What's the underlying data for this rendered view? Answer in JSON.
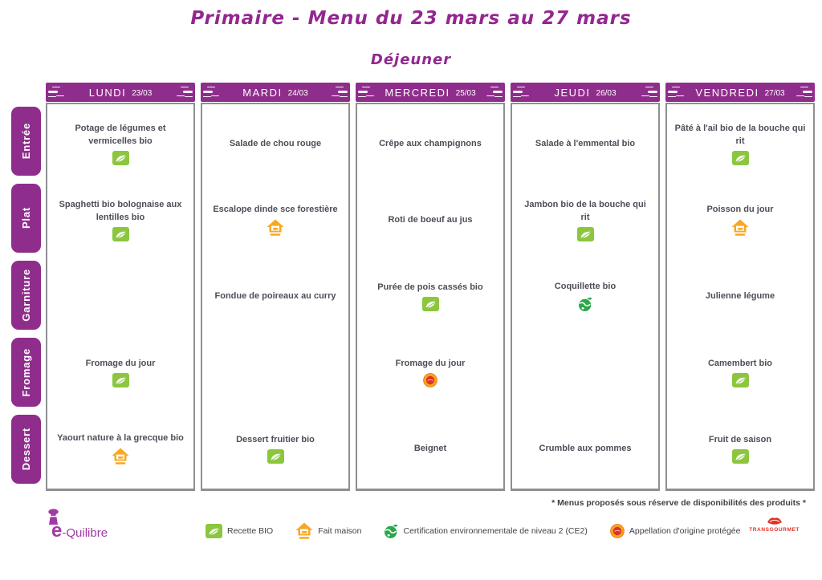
{
  "title": "Primaire - Menu du 23 mars au 27 mars",
  "subtitle": "Déjeuner",
  "colors": {
    "purple": "#8F2D8C",
    "bio_green": "#8CC63E",
    "ce2_green": "#2BA84A",
    "fait_maison_orange": "#F7A823",
    "aop_orange": "#F9A51A",
    "aop_red": "#E03127",
    "text_dark": "#4D4E58"
  },
  "row_labels": [
    "Entrée",
    "Plat",
    "Garniture",
    "Fromage",
    "Dessert"
  ],
  "days": [
    {
      "name": "LUNDI",
      "date": "23/03",
      "cells": [
        {
          "text": "Potage de légumes et vermicelles bio",
          "icons": [
            "bio"
          ]
        },
        {
          "text": "Spaghetti bio bolognaise aux lentilles bio",
          "icons": [
            "bio"
          ]
        },
        {
          "text": "",
          "icons": []
        },
        {
          "text": "Fromage du jour",
          "icons": [
            "bio"
          ]
        },
        {
          "text": "Yaourt nature à la grecque bio",
          "icons": [
            "fait-maison"
          ]
        }
      ]
    },
    {
      "name": "MARDI",
      "date": "24/03",
      "cells": [
        {
          "text": "Salade de chou rouge",
          "icons": []
        },
        {
          "text": "Escalope dinde sce forestière",
          "icons": [
            "fait-maison"
          ]
        },
        {
          "text": "Fondue de poireaux au curry",
          "icons": []
        },
        {
          "text": "",
          "icons": []
        },
        {
          "text": "Dessert fruitier bio",
          "icons": [
            "bio"
          ]
        }
      ]
    },
    {
      "name": "MERCREDI",
      "date": "25/03",
      "cells": [
        {
          "text": "Crêpe aux champignons",
          "icons": []
        },
        {
          "text": "Roti de boeuf au jus",
          "icons": []
        },
        {
          "text": "Purée de pois cassés bio",
          "icons": [
            "bio"
          ]
        },
        {
          "text": "Fromage du jour",
          "icons": [
            "aop"
          ]
        },
        {
          "text": "Beignet",
          "icons": []
        }
      ]
    },
    {
      "name": "JEUDI",
      "date": "26/03",
      "cells": [
        {
          "text": "Salade à l'emmental bio",
          "icons": []
        },
        {
          "text": "Jambon bio de la bouche qui rit",
          "icons": [
            "bio"
          ]
        },
        {
          "text": "Coquillette bio",
          "icons": [
            "ce2"
          ]
        },
        {
          "text": "",
          "icons": []
        },
        {
          "text": "Crumble aux pommes",
          "icons": []
        }
      ]
    },
    {
      "name": "VENDREDI",
      "date": "27/03",
      "cells": [
        {
          "text": "Pâté à l'ail bio de la bouche qui rit",
          "icons": [
            "bio"
          ]
        },
        {
          "text": "Poisson du jour",
          "icons": [
            "fait-maison"
          ]
        },
        {
          "text": "Julienne légume",
          "icons": []
        },
        {
          "text": "Camembert bio",
          "icons": [
            "bio"
          ]
        },
        {
          "text": "Fruit de saison",
          "icons": [
            "bio"
          ]
        }
      ]
    }
  ],
  "footnote": "* Menus proposés sous réserve de disponibilités des produits *",
  "legend": [
    {
      "icon": "bio",
      "label": "Recette BIO"
    },
    {
      "icon": "fait-maison",
      "label": "Fait maison"
    },
    {
      "icon": "ce2",
      "label": "Certification environnementale de niveau 2 (CE2)"
    },
    {
      "icon": "aop",
      "label": "Appellation d'origine protégée"
    }
  ],
  "logos": {
    "left_big_letter": "e",
    "left_rest": "-Quilibre",
    "right_text": "TRANSGOURMET"
  }
}
